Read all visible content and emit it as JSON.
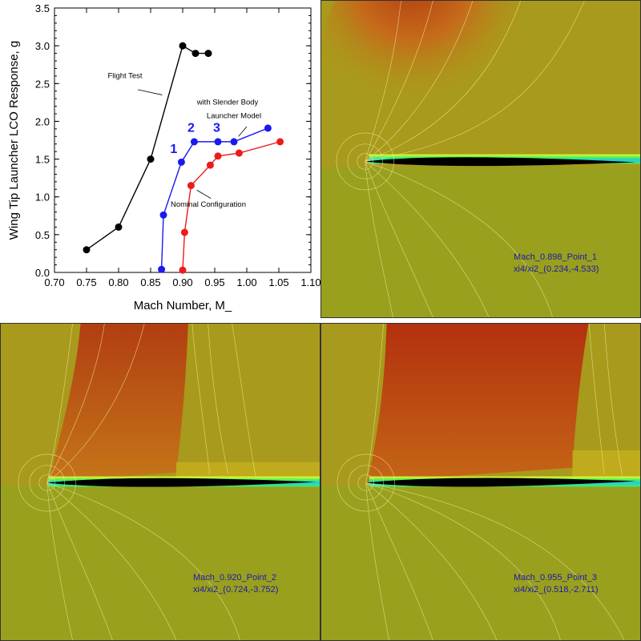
{
  "chart_data": {
    "type": "line",
    "xlabel": "Mach Number, M_",
    "ylabel": "Wing Tip Launcher LCO Response, g",
    "xlim": [
      0.7,
      1.1
    ],
    "ylim": [
      0.0,
      3.5
    ],
    "x_ticks": [
      "0.70",
      "0.75",
      "0.80",
      "0.85",
      "0.90",
      "0.95",
      "1.00",
      "1.05",
      "1.10"
    ],
    "y_ticks": [
      "0.0",
      "0.5",
      "1.0",
      "1.5",
      "2.0",
      "2.5",
      "3.0",
      "3.5"
    ],
    "grid": false,
    "series": [
      {
        "name": "Flight Test",
        "color": "#000000",
        "points": [
          [
            0.75,
            0.3
          ],
          [
            0.8,
            0.6
          ],
          [
            0.85,
            1.5
          ],
          [
            0.9,
            3.0
          ],
          [
            0.92,
            2.9
          ],
          [
            0.94,
            2.9
          ]
        ]
      },
      {
        "name": "with Slender Body Launcher Model",
        "color": "#1a1aee",
        "points": [
          [
            0.867,
            0.04
          ],
          [
            0.87,
            0.76
          ],
          [
            0.898,
            1.46
          ],
          [
            0.918,
            1.73
          ],
          [
            0.955,
            1.73
          ],
          [
            0.98,
            1.73
          ],
          [
            1.033,
            1.91
          ]
        ]
      },
      {
        "name": "Nominal Configuration",
        "color": "#ee1a1a",
        "points": [
          [
            0.9,
            0.03
          ],
          [
            0.903,
            0.53
          ],
          [
            0.913,
            1.15
          ],
          [
            0.943,
            1.42
          ],
          [
            0.955,
            1.54
          ],
          [
            0.988,
            1.58
          ],
          [
            1.052,
            1.73
          ]
        ]
      }
    ],
    "annotations": [
      {
        "text": "Flight Test",
        "x": 0.81,
        "y": 2.57
      },
      {
        "text": "with Slender Body",
        "x": 0.97,
        "y": 2.22
      },
      {
        "text": "Launcher Model",
        "x": 0.98,
        "y": 2.04
      },
      {
        "text": "Nominal Configuration",
        "x": 0.94,
        "y": 0.87
      }
    ],
    "point_labels": [
      {
        "text": "1",
        "x": 0.886,
        "y": 1.58
      },
      {
        "text": "2",
        "x": 0.913,
        "y": 1.86
      },
      {
        "text": "3",
        "x": 0.953,
        "y": 1.86
      }
    ]
  },
  "flow_panels": [
    {
      "line1": "Mach_0.898_Point_1",
      "line2": "xi4/xi2_(0.234,-4.533)"
    },
    {
      "line1": "Mach_0.920_Point_2",
      "line2": "xi4/xi2_(0.724,-3.752)"
    },
    {
      "line1": "Mach_0.955_Point_3",
      "line2": "xi4/xi2_(0.518,-2.711)"
    }
  ]
}
